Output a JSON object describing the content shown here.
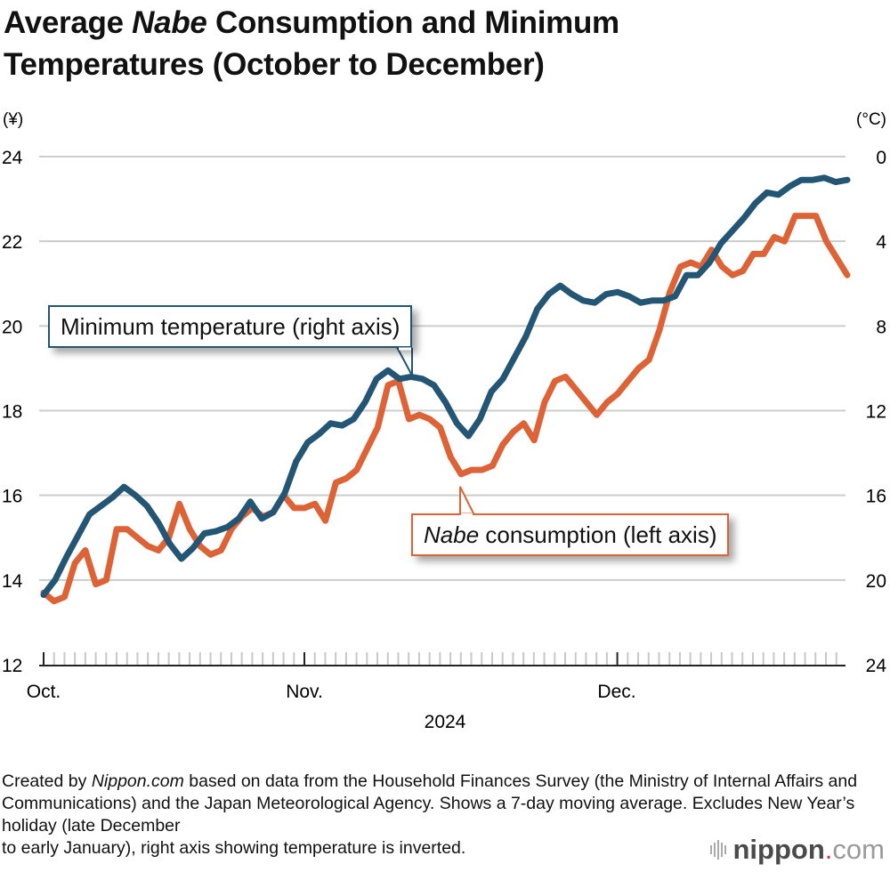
{
  "title": {
    "prefix": "Average ",
    "italic": "Nabe",
    "line1_rest": " Consumption and Minimum",
    "line2": "Temperatures (October to December)"
  },
  "chart_data": {
    "type": "line",
    "title": "Average Nabe Consumption and Minimum Temperatures (October to December)",
    "xlabel": "2024",
    "month_labels": [
      "Oct.",
      "Nov.",
      "Dec."
    ],
    "left_axis": {
      "unit": "(¥)",
      "ylim": [
        12,
        24
      ],
      "ticks": [
        "12",
        "14",
        "16",
        "18",
        "20",
        "22",
        "24"
      ]
    },
    "right_axis": {
      "unit": "(°C)",
      "ylim": [
        24,
        0
      ],
      "inverted": true,
      "ticks": [
        "0",
        "4",
        "8",
        "12",
        "16",
        "20",
        "24"
      ]
    },
    "grid": true,
    "series": [
      {
        "name": "Nabe consumption (left axis)",
        "axis": "left",
        "color": "#dd6236",
        "values": [
          13.7,
          13.5,
          13.6,
          14.4,
          14.7,
          13.9,
          14.0,
          15.2,
          15.2,
          15.0,
          14.8,
          14.7,
          15.0,
          15.8,
          15.2,
          14.8,
          14.6,
          14.7,
          15.2,
          15.5,
          15.7,
          15.5,
          15.6,
          16.0,
          15.7,
          15.7,
          15.8,
          15.4,
          16.3,
          16.4,
          16.6,
          17.1,
          17.6,
          18.6,
          18.7,
          17.8,
          17.9,
          17.8,
          17.6,
          16.9,
          16.5,
          16.6,
          16.6,
          16.7,
          17.2,
          17.5,
          17.7,
          17.3,
          18.2,
          18.7,
          18.8,
          18.5,
          18.2,
          17.9,
          18.2,
          18.4,
          18.7,
          19.0,
          19.2,
          19.9,
          20.8,
          21.4,
          21.5,
          21.4,
          21.8,
          21.4,
          21.2,
          21.3,
          21.7,
          21.7,
          22.1,
          22.0,
          22.6,
          22.6,
          22.6,
          22.0,
          21.6,
          21.2
        ]
      },
      {
        "name": "Minimum temperature (right axis)",
        "axis": "right",
        "color": "#235574",
        "values": [
          20.7,
          20.0,
          18.9,
          17.9,
          16.9,
          16.5,
          16.1,
          15.6,
          16.0,
          16.5,
          17.3,
          18.3,
          19.0,
          18.5,
          17.8,
          17.7,
          17.5,
          17.1,
          16.3,
          17.1,
          16.8,
          15.9,
          14.4,
          13.5,
          13.1,
          12.6,
          12.7,
          12.4,
          11.6,
          10.5,
          10.1,
          10.5,
          10.4,
          10.5,
          10.8,
          11.6,
          12.6,
          13.2,
          12.4,
          11.1,
          10.5,
          9.5,
          8.5,
          7.2,
          6.5,
          6.1,
          6.5,
          6.8,
          6.9,
          6.5,
          6.4,
          6.6,
          6.9,
          6.8,
          6.8,
          6.6,
          5.6,
          5.6,
          5.0,
          4.1,
          3.5,
          2.9,
          2.2,
          1.7,
          1.8,
          1.4,
          1.1,
          1.1,
          1.0,
          1.2,
          1.1
        ]
      }
    ]
  },
  "annotations": {
    "temp_label": "Minimum temperature (right axis)",
    "nabe_label_italic": "Nabe",
    "nabe_label_rest": " consumption (left axis)"
  },
  "footer": {
    "note_prefix": "Created by ",
    "note_italic": "Nippon.com",
    "note_rest": " based on data from the Household Finances Survey (the Ministry of Internal Affairs and Communications) and the Japan Meteorological Agency. Shows a 7-day moving average. Excludes New Year’s holiday (late December",
    "note_line4": "to early January), right axis showing temperature is inverted.",
    "logo_main": "nippon",
    "logo_dot": ".",
    "logo_tld": "com"
  }
}
